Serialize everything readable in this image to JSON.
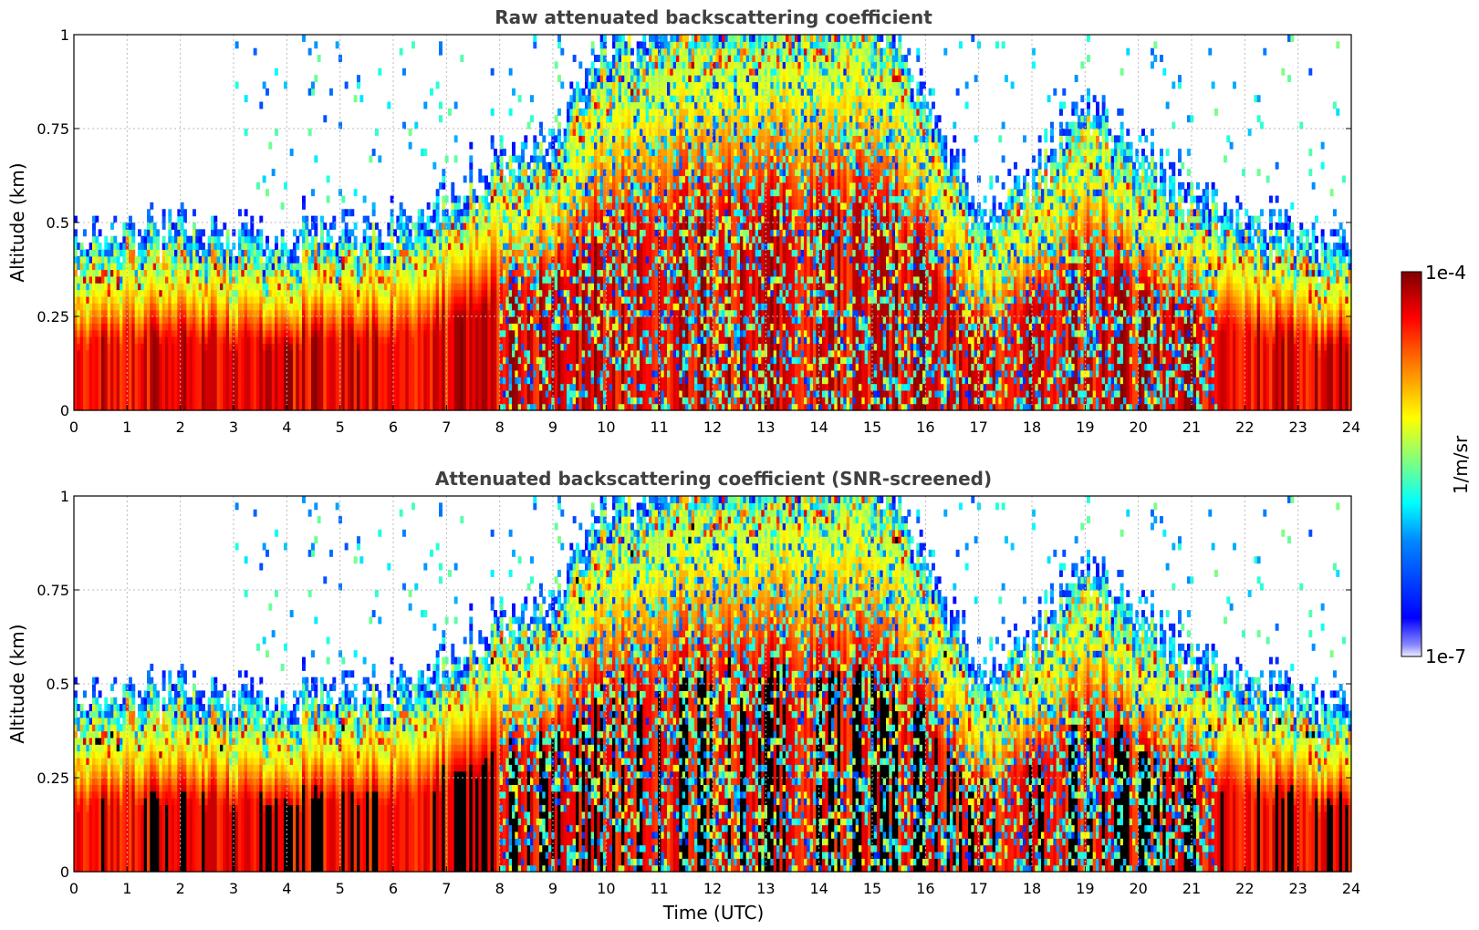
{
  "chart_data": [
    {
      "type": "heatmap",
      "title": "Raw attenuated backscattering coefficient",
      "xlabel": "",
      "ylabel": "Altitude (km)",
      "xlim": [
        0,
        24
      ],
      "ylim": [
        0,
        1
      ],
      "x_ticks": [
        "0",
        "1",
        "2",
        "3",
        "4",
        "5",
        "6",
        "7",
        "8",
        "9",
        "10",
        "11",
        "12",
        "13",
        "14",
        "15",
        "16",
        "17",
        "18",
        "19",
        "20",
        "21",
        "22",
        "23",
        "24"
      ],
      "y_ticks": [
        "0",
        "0.25",
        "0.5",
        "0.75",
        "1"
      ],
      "grid": true,
      "screened": false
    },
    {
      "type": "heatmap",
      "title": "Attenuated backscattering coefficient (SNR-screened)",
      "xlabel": "Time (UTC)",
      "ylabel": "Altitude (km)",
      "xlim": [
        0,
        24
      ],
      "ylim": [
        0,
        1
      ],
      "x_ticks": [
        "0",
        "1",
        "2",
        "3",
        "4",
        "5",
        "6",
        "7",
        "8",
        "9",
        "10",
        "11",
        "12",
        "13",
        "14",
        "15",
        "16",
        "17",
        "18",
        "19",
        "20",
        "21",
        "22",
        "23",
        "24"
      ],
      "y_ticks": [
        "0",
        "0.25",
        "0.5",
        "0.75",
        "1"
      ],
      "grid": true,
      "screened": true
    }
  ],
  "colorbar": {
    "label": "1/m/sr",
    "max_label": "1e-4",
    "min_label": "1e-7",
    "scale": "log",
    "range": [
      1e-07,
      0.0001
    ],
    "colormap": "jet"
  },
  "aerosol_layer_top_km": [
    [
      0,
      0.33
    ],
    [
      1,
      0.35
    ],
    [
      2,
      0.36
    ],
    [
      3,
      0.33
    ],
    [
      4,
      0.35
    ],
    [
      5,
      0.34
    ],
    [
      6,
      0.36
    ],
    [
      7,
      0.42
    ],
    [
      8,
      0.55
    ],
    [
      9,
      0.6
    ],
    [
      10,
      0.85
    ],
    [
      11,
      0.9
    ],
    [
      12,
      0.95
    ],
    [
      13,
      0.95
    ],
    [
      14,
      0.95
    ],
    [
      15,
      0.95
    ],
    [
      16,
      0.7
    ],
    [
      17,
      0.38
    ],
    [
      18,
      0.5
    ],
    [
      19,
      0.72
    ],
    [
      20,
      0.55
    ],
    [
      21,
      0.45
    ],
    [
      22,
      0.38
    ],
    [
      23,
      0.33
    ],
    [
      24,
      0.3
    ]
  ]
}
